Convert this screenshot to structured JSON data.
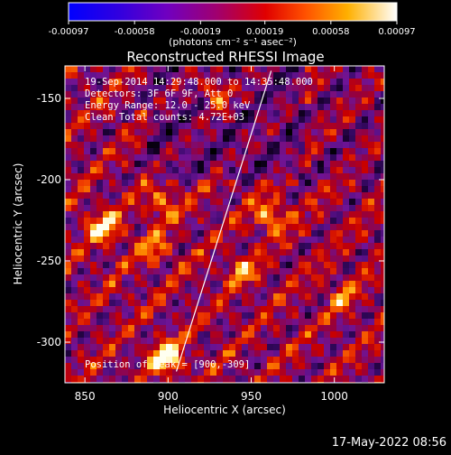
{
  "colorbar": {
    "ticks": [
      "-0.00097",
      "-0.00058",
      "-0.00019",
      "0.00019",
      "0.00058",
      "0.00097"
    ],
    "unit_label": "(photons cm⁻² s⁻¹ asec⁻²)",
    "min": -0.00097,
    "max": 0.00097
  },
  "chart_data": {
    "type": "heatmap",
    "title": "Reconstructed RHESSI Image",
    "xlabel": "Heliocentric X (arcsec)",
    "ylabel": "Heliocentric Y (arcsec)",
    "xlim": [
      838,
      1030
    ],
    "ylim": [
      -325,
      -130
    ],
    "x_ticks": [
      850,
      900,
      950,
      1000
    ],
    "y_ticks": [
      -150,
      -200,
      -250,
      -300
    ],
    "limb_line": [
      [
        905,
        -318
      ],
      [
        962,
        -133
      ]
    ],
    "peak": {
      "x": 900,
      "y": -309
    }
  },
  "annotations": {
    "line1": "19-Sep-2014 14:29:48.000 to 14:35:48.000",
    "line2": "Detectors: 3F 6F 9F, Att 0",
    "line3": "Energy Range: 12.0 - 25.0 keV",
    "line4": "Clean     Total counts: 4.72E+03",
    "peak_label": "Position of Peak = [900,-309]"
  },
  "footer": {
    "date": "17-May-2022 08:56"
  }
}
